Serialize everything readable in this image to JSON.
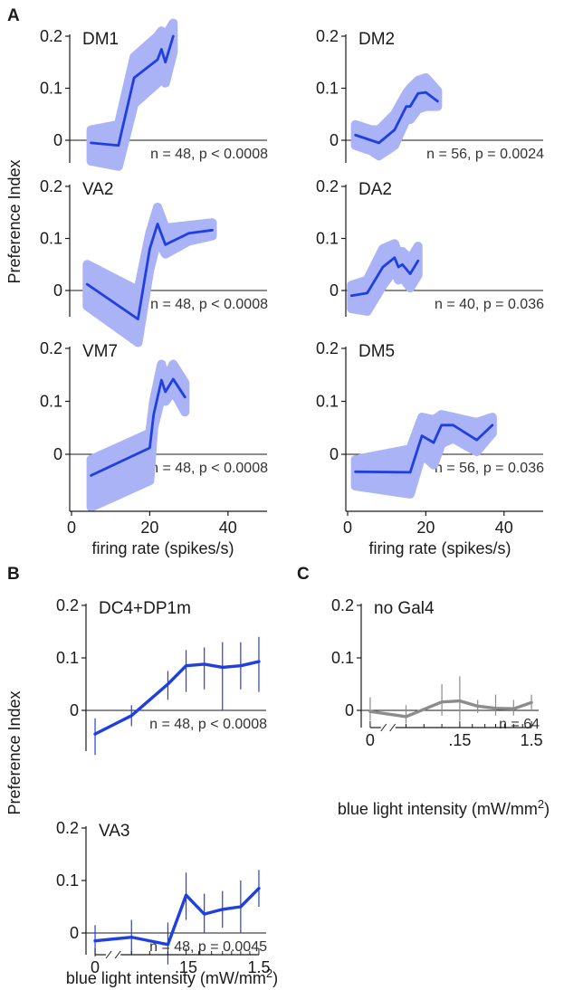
{
  "panel_labels": {
    "A": "A",
    "B": "B",
    "C": "C"
  },
  "shared_labels": {
    "ylabel": "Preference Index",
    "xlabel_firing": "firing rate (spikes/s)",
    "xlabel_light_prefix": "blue light intensity (mW/mm",
    "xlabel_light_sup": "2",
    "xlabel_light_suffix": ")"
  },
  "colors": {
    "series": "#1f3fe0",
    "band": "#aab3f5",
    "control": "#8c8c8c",
    "axis": "#1a1a1a"
  },
  "chart_data": [
    {
      "id": "A1",
      "type": "line",
      "title": "DM1",
      "annotation": "n = 48, p < 0.0008",
      "x_axis_shown": false,
      "xlim": [
        0,
        50
      ],
      "ylim": [
        -0.02,
        0.2
      ],
      "yticks": [
        0,
        0.1,
        0.2
      ],
      "ytick_labels": [
        "0",
        "0.1",
        "0.2"
      ],
      "x": [
        5,
        12,
        16,
        22,
        23,
        24,
        26
      ],
      "y": [
        -0.005,
        -0.01,
        0.12,
        0.155,
        0.175,
        0.15,
        0.2
      ],
      "band_upper": [
        0.02,
        0.03,
        0.16,
        0.2,
        0.21,
        0.2,
        0.225
      ],
      "band_lower": [
        -0.04,
        -0.05,
        0.07,
        0.11,
        0.13,
        0.11,
        0.17
      ]
    },
    {
      "id": "A2",
      "type": "line",
      "title": "DM2",
      "annotation": "n = 56, p = 0.0024",
      "x_axis_shown": false,
      "xlim": [
        0,
        50
      ],
      "ylim": [
        -0.02,
        0.2
      ],
      "yticks": [
        0,
        0.1,
        0.2
      ],
      "ytick_labels": [
        "0",
        "0.1",
        "0.2"
      ],
      "x": [
        2,
        6,
        8,
        12,
        15,
        16,
        18,
        20,
        23
      ],
      "y": [
        0.01,
        0.0,
        -0.005,
        0.02,
        0.065,
        0.065,
        0.09,
        0.092,
        0.075
      ],
      "band_upper": [
        0.03,
        0.02,
        0.02,
        0.05,
        0.09,
        0.1,
        0.115,
        0.12,
        0.095
      ],
      "band_lower": [
        -0.01,
        -0.02,
        -0.03,
        -0.01,
        0.04,
        0.04,
        0.06,
        0.065,
        0.065
      ]
    },
    {
      "id": "A3",
      "type": "line",
      "title": "VA2",
      "annotation": "n = 48, p < 0.0008",
      "x_axis_shown": false,
      "xlim": [
        0,
        50
      ],
      "ylim": [
        -0.06,
        0.2
      ],
      "yticks": [
        0,
        0.1,
        0.2
      ],
      "ytick_labels": [
        "0",
        "0.1",
        "0.2"
      ],
      "x": [
        4,
        17,
        20,
        22,
        24,
        30,
        36
      ],
      "y": [
        0.012,
        -0.055,
        0.08,
        0.128,
        0.088,
        0.11,
        0.116
      ],
      "band_upper": [
        0.05,
        0.0,
        0.11,
        0.16,
        0.12,
        0.125,
        0.13
      ],
      "band_lower": [
        -0.03,
        -0.1,
        0.04,
        0.1,
        0.07,
        0.095,
        0.105
      ]
    },
    {
      "id": "A4",
      "type": "line",
      "title": "DA2",
      "annotation": "n = 40, p = 0.036",
      "x_axis_shown": false,
      "xlim": [
        0,
        50
      ],
      "ylim": [
        -0.06,
        0.2
      ],
      "yticks": [
        0,
        0.1,
        0.2
      ],
      "ytick_labels": [
        "0",
        "0.1",
        "0.2"
      ],
      "x": [
        1,
        5,
        9,
        12,
        13,
        14,
        16,
        18
      ],
      "y": [
        -0.01,
        -0.005,
        0.045,
        0.063,
        0.045,
        0.05,
        0.032,
        0.057
      ],
      "band_upper": [
        0.01,
        0.02,
        0.08,
        0.09,
        0.07,
        0.075,
        0.06,
        0.085
      ],
      "band_lower": [
        -0.035,
        -0.04,
        0.01,
        0.04,
        0.02,
        0.025,
        0.005,
        0.03
      ]
    },
    {
      "id": "A5",
      "type": "line",
      "title": "VM7",
      "annotation": "n = 48, p < 0.0008",
      "x_axis_shown": true,
      "xlim": [
        0,
        50
      ],
      "ylim": [
        -0.06,
        0.2
      ],
      "yticks": [
        0,
        0.1,
        0.2
      ],
      "ytick_labels": [
        "0",
        "0.1",
        "0.2"
      ],
      "xticks": [
        0,
        20,
        40
      ],
      "xtick_labels": [
        "0",
        "20",
        "40"
      ],
      "xlabel": "firing rate (spikes/s)",
      "x": [
        5,
        20,
        21,
        23,
        24,
        26,
        29
      ],
      "y": [
        -0.04,
        0.012,
        0.075,
        0.14,
        0.118,
        0.142,
        0.108
      ],
      "band_upper": [
        -0.01,
        0.04,
        0.1,
        0.17,
        0.14,
        0.17,
        0.135
      ],
      "band_lower": [
        -0.1,
        -0.05,
        0.05,
        0.11,
        0.1,
        0.12,
        0.08
      ]
    },
    {
      "id": "A6",
      "type": "line",
      "title": "DM5",
      "annotation": "n = 56, p = 0.036",
      "x_axis_shown": true,
      "xlim": [
        0,
        50
      ],
      "ylim": [
        -0.06,
        0.2
      ],
      "yticks": [
        0,
        0.1,
        0.2
      ],
      "ytick_labels": [
        "0",
        "0.1",
        "0.2"
      ],
      "xticks": [
        0,
        20,
        40
      ],
      "xtick_labels": [
        "0",
        "20",
        "40"
      ],
      "xlabel": "firing rate (spikes/s)",
      "x": [
        2,
        16,
        19,
        22,
        24,
        27,
        33,
        37
      ],
      "y": [
        -0.033,
        -0.034,
        0.035,
        0.022,
        0.055,
        0.055,
        0.027,
        0.055
      ],
      "band_upper": [
        -0.01,
        0.01,
        0.07,
        0.065,
        0.075,
        0.07,
        0.06,
        0.07
      ],
      "band_lower": [
        -0.06,
        -0.075,
        0.0,
        -0.02,
        0.02,
        0.03,
        0.005,
        0.04
      ]
    },
    {
      "id": "B1",
      "type": "line",
      "title": "DC4+DP1m",
      "annotation": "n = 48, p < 0.0008",
      "x_axis_shown": false,
      "xlim": [
        -0.4,
        9.4
      ],
      "ylim": [
        -0.06,
        0.2
      ],
      "yticks": [
        0,
        0.1,
        0.2
      ],
      "ytick_labels": [
        "0",
        "0.1",
        "0.2"
      ],
      "x": [
        0,
        2,
        4,
        5,
        6,
        7,
        8,
        9
      ],
      "y": [
        -0.045,
        -0.01,
        0.05,
        0.085,
        0.088,
        0.082,
        0.085,
        0.093
      ],
      "err_upper": [
        -0.015,
        0.01,
        0.075,
        0.115,
        0.12,
        0.13,
        0.13,
        0.14
      ],
      "err_lower": [
        -0.085,
        -0.03,
        0.02,
        0.035,
        0.04,
        0.0,
        0.04,
        0.035
      ]
    },
    {
      "id": "B2",
      "type": "line",
      "title": "VA3",
      "annotation": "n = 48, p = 0.0045",
      "x_axis_shown": true,
      "xlim": [
        -0.4,
        9.4
      ],
      "ylim": [
        -0.06,
        0.2
      ],
      "yticks": [
        0,
        0.1,
        0.2
      ],
      "ytick_labels": [
        "0",
        "0.1",
        "0.2"
      ],
      "xtick_pos": [
        0,
        5,
        9
      ],
      "xtick_labels": [
        "0",
        ".15",
        "1.5"
      ],
      "x": [
        0,
        2,
        4,
        5,
        6,
        7,
        8,
        9
      ],
      "y": [
        -0.015,
        -0.008,
        -0.022,
        0.072,
        0.036,
        0.045,
        0.05,
        0.085
      ],
      "err_upper": [
        0.015,
        0.025,
        0.02,
        0.115,
        0.075,
        0.08,
        0.1,
        0.12
      ],
      "err_lower": [
        -0.045,
        -0.04,
        -0.06,
        0.025,
        0.0,
        0.01,
        0.0,
        0.05
      ]
    },
    {
      "id": "C1",
      "type": "line",
      "title": "no Gal4",
      "annotation": "n = 64",
      "x_axis_shown": true,
      "xlim": [
        -0.4,
        9.4
      ],
      "ylim": [
        -0.02,
        0.2
      ],
      "yticks": [
        0,
        0.1,
        0.2
      ],
      "ytick_labels": [
        "0",
        "0.1",
        "0.2"
      ],
      "xtick_pos": [
        0,
        5,
        9
      ],
      "xtick_labels": [
        "0",
        ".15",
        "1.5"
      ],
      "x": [
        0,
        2,
        4,
        5,
        6,
        7,
        8,
        9
      ],
      "y": [
        -0.002,
        -0.012,
        0.016,
        0.018,
        0.008,
        0.004,
        0.003,
        0.015
      ],
      "err_upper": [
        0.025,
        0.01,
        0.05,
        0.065,
        0.02,
        0.03,
        0.02,
        0.03
      ],
      "err_lower": [
        -0.02,
        -0.025,
        -0.01,
        -0.02,
        -0.005,
        -0.01,
        -0.01,
        0.0
      ]
    }
  ]
}
